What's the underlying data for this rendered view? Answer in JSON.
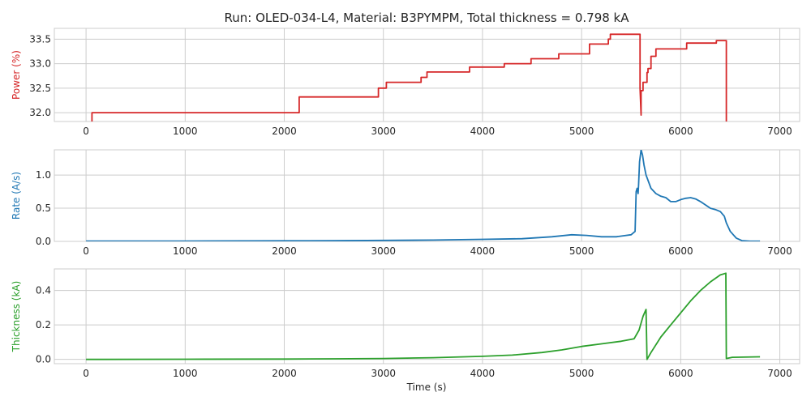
{
  "chart_data": {
    "type": "line",
    "title": "Run: OLED-034-L4, Material: B3PYMPM, Total thickness = 0.798 kA",
    "xlabel": "Time (s)",
    "xlim": [
      -320,
      7200
    ],
    "xticks": [
      0,
      1000,
      2000,
      3000,
      4000,
      5000,
      6000,
      7000
    ],
    "grid": true,
    "panels": [
      {
        "ylabel": "Power (%)",
        "color": "#d62728",
        "ylim": [
          31.82,
          33.72
        ],
        "yticks": [
          "32.0",
          "32.5",
          "33.0",
          "33.5"
        ],
        "series": [
          {
            "x": [
              60,
              60,
              2150,
              2150,
              2950,
              2950,
              3030,
              3030,
              3380,
              3380,
              3440,
              3440,
              3870,
              3870,
              4220,
              4220,
              4490,
              4490,
              4770,
              4770,
              5080,
              5080,
              5270,
              5270,
              5290,
              5290,
              5590,
              5590,
              5600,
              5600,
              5620,
              5620,
              5660,
              5660,
              5670,
              5670,
              5700,
              5700,
              5750,
              5750,
              6060,
              6060,
              6360,
              6360,
              6460,
              6460
            ],
            "y": [
              31.82,
              32.0,
              32.0,
              32.32,
              32.32,
              32.5,
              32.5,
              32.62,
              32.62,
              32.72,
              32.72,
              32.83,
              32.83,
              32.93,
              32.93,
              33.0,
              33.0,
              33.1,
              33.1,
              33.2,
              33.2,
              33.4,
              33.4,
              33.5,
              33.5,
              33.6,
              33.6,
              32.5,
              31.95,
              32.45,
              32.45,
              32.62,
              32.62,
              32.82,
              32.82,
              32.9,
              32.9,
              33.15,
              33.15,
              33.3,
              33.3,
              33.42,
              33.42,
              33.47,
              33.47,
              31.82
            ]
          }
        ]
      },
      {
        "ylabel": "Rate (A/s)",
        "color": "#1f77b4",
        "ylim": [
          0,
          1.38
        ],
        "yticks": [
          "0.0",
          "0.5",
          "1.0"
        ],
        "series": [
          {
            "x": [
              0,
              1000,
              2000,
              2500,
              3000,
              3500,
              4000,
              4400,
              4700,
              4900,
              5050,
              5200,
              5350,
              5500,
              5540,
              5550,
              5560,
              5570,
              5575,
              5585,
              5600,
              5615,
              5630,
              5650,
              5700,
              5750,
              5800,
              5850,
              5900,
              5950,
              6000,
              6050,
              6100,
              6150,
              6200,
              6250,
              6300,
              6350,
              6400,
              6440,
              6460,
              6500,
              6560,
              6620,
              6700,
              6800
            ],
            "y": [
              0.005,
              0.005,
              0.008,
              0.01,
              0.015,
              0.02,
              0.03,
              0.04,
              0.07,
              0.1,
              0.09,
              0.07,
              0.07,
              0.1,
              0.15,
              0.75,
              0.8,
              0.72,
              0.85,
              1.2,
              1.38,
              1.3,
              1.15,
              1.0,
              0.8,
              0.72,
              0.68,
              0.66,
              0.6,
              0.6,
              0.63,
              0.65,
              0.66,
              0.64,
              0.6,
              0.55,
              0.5,
              0.48,
              0.45,
              0.38,
              0.28,
              0.15,
              0.05,
              0.01,
              0.003,
              0.002
            ]
          }
        ]
      },
      {
        "ylabel": "Thickness (kA)",
        "color": "#2ca02c",
        "ylim": [
          -0.025,
          0.525
        ],
        "yticks": [
          "0.0",
          "0.2",
          "0.4"
        ],
        "series": [
          {
            "x": [
              0,
              1000,
              2000,
              2500,
              3000,
              3500,
              4000,
              4300,
              4600,
              4800,
              5000,
              5200,
              5400,
              5530,
              5580,
              5620,
              5650,
              5660,
              5700,
              5800,
              5900,
              6000,
              6100,
              6200,
              6300,
              6400,
              6455,
              6460,
              6520,
              6800
            ],
            "y": [
              0,
              0.001,
              0.002,
              0.003,
              0.005,
              0.01,
              0.018,
              0.025,
              0.04,
              0.055,
              0.075,
              0.09,
              0.105,
              0.12,
              0.17,
              0.25,
              0.29,
              0,
              0.04,
              0.13,
              0.2,
              0.27,
              0.34,
              0.4,
              0.45,
              0.49,
              0.5,
              0.005,
              0.012,
              0.015
            ]
          }
        ]
      }
    ]
  }
}
